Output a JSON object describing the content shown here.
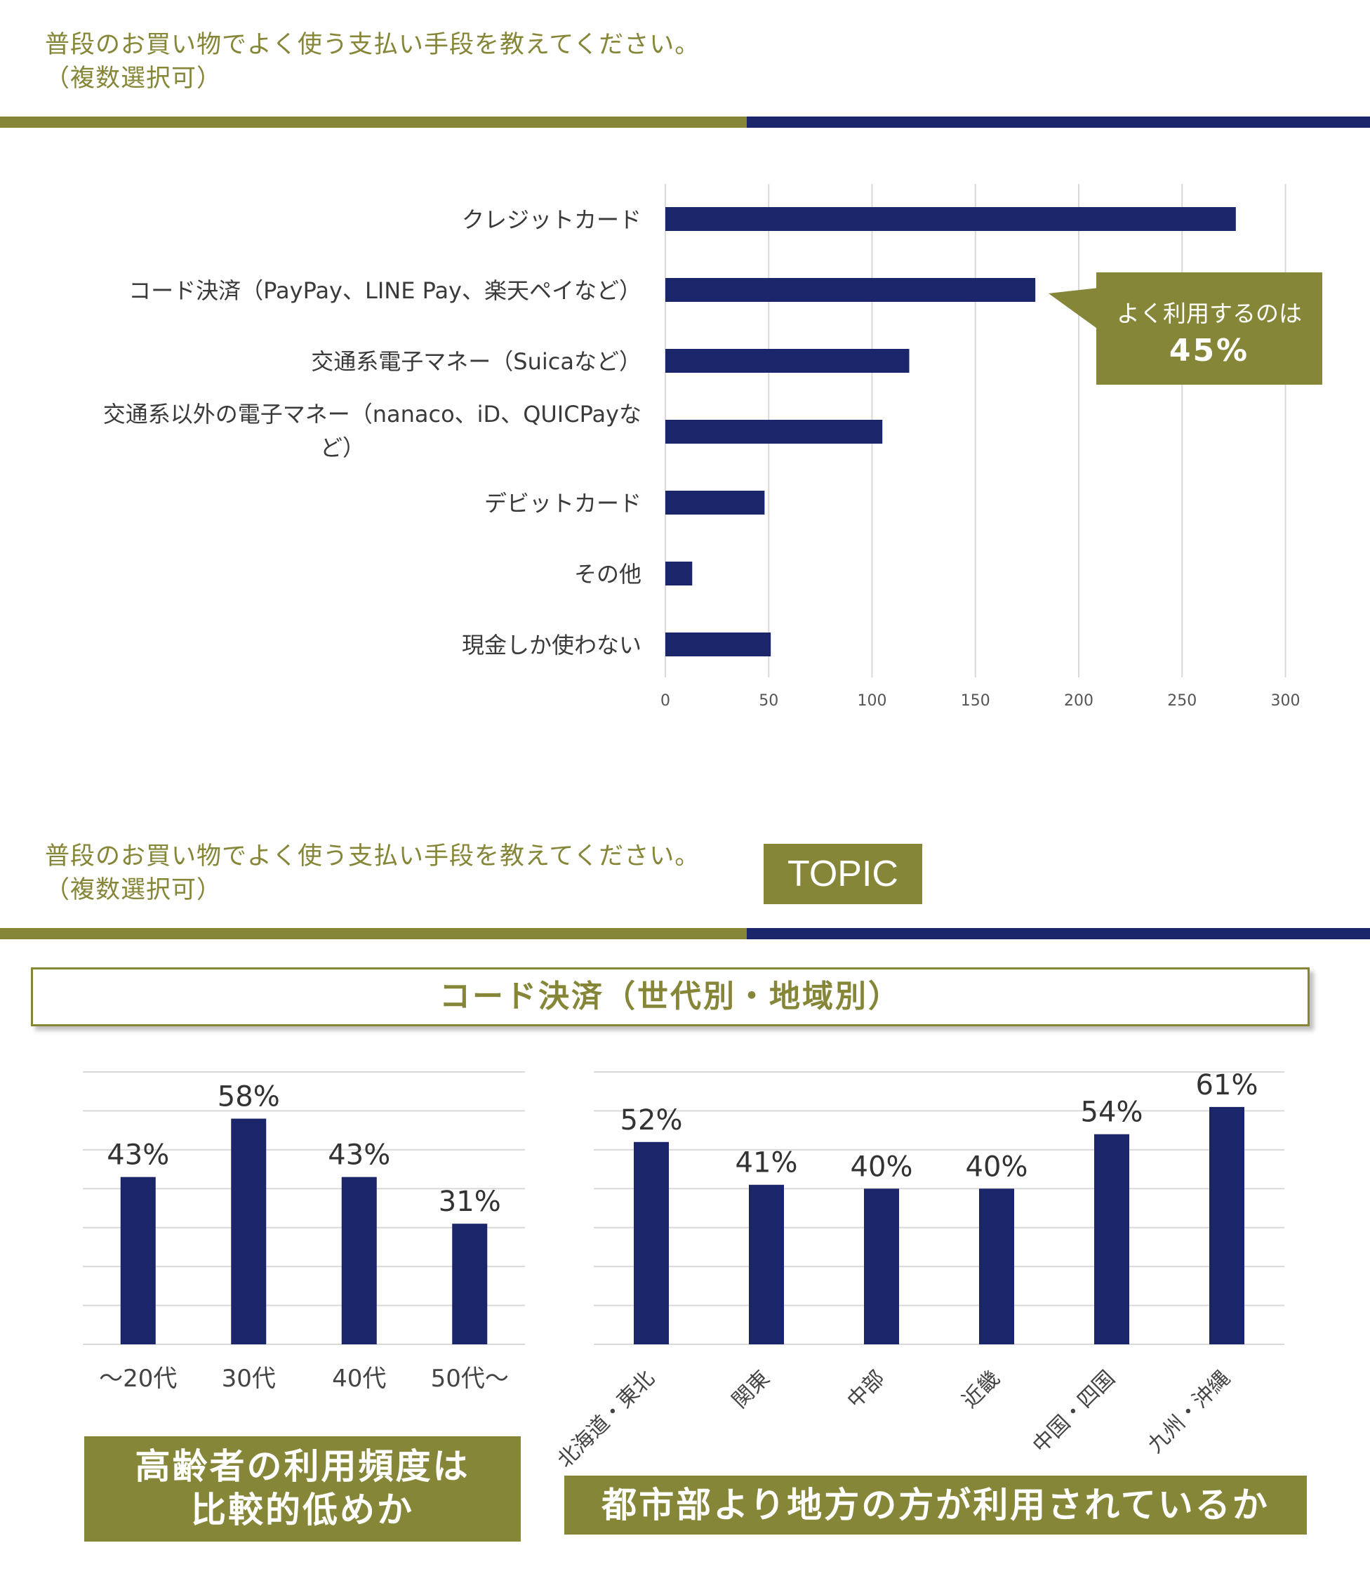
{
  "top": {
    "question_line1": "普段のお買い物でよく使う支払い手段を教えてください。",
    "question_line2": "（複数選択可）"
  },
  "callout": {
    "line1": "よく利用するのは",
    "line2": "45%"
  },
  "bottom": {
    "question_line1": "普段のお買い物でよく使う支払い手段を教えてください。",
    "question_line2": "（複数選択可）",
    "topic_label": "TOPIC",
    "section_title": "コード決済（世代別・地域別）",
    "note_age_line1": "高齢者の利用頻度は",
    "note_age_line2": "比較的低めか",
    "note_region": "都市部より地方の方が利用されているか"
  },
  "colors": {
    "bar": "#1b2569",
    "accent": "#858637",
    "grid": "#d9d9d9"
  },
  "chart_data": [
    {
      "type": "bar",
      "orientation": "horizontal",
      "categories": [
        "クレジットカード",
        "コード決済（PayPay、LINE Pay、楽天ペイなど）",
        "交通系電子マネー（Suicaなど）",
        "交通系以外の電子マネー（nanaco、iD、QUICPayな|ど）",
        "デビットカード",
        "その他",
        "現金しか使わない"
      ],
      "values": [
        276,
        179,
        118,
        105,
        48,
        13,
        51
      ],
      "xlim": [
        0,
        300
      ],
      "xticks": [
        "0",
        "50",
        "100",
        "150",
        "200",
        "250",
        "300"
      ],
      "grid": true
    },
    {
      "type": "bar",
      "categories": [
        "〜20代",
        "30代",
        "40代",
        "50代〜"
      ],
      "values": [
        43,
        58,
        43,
        31
      ],
      "labels": [
        "43%",
        "58%",
        "43%",
        "31%"
      ],
      "ylim": [
        0,
        70
      ],
      "grid": true
    },
    {
      "type": "bar",
      "categories": [
        "北海道・東北",
        "関東",
        "中部",
        "近畿",
        "中国・四国",
        "九州・沖縄"
      ],
      "values": [
        52,
        41,
        40,
        40,
        54,
        61
      ],
      "labels": [
        "52%",
        "41%",
        "40%",
        "40%",
        "54%",
        "61%"
      ],
      "ylim": [
        0,
        70
      ],
      "grid": true
    }
  ]
}
